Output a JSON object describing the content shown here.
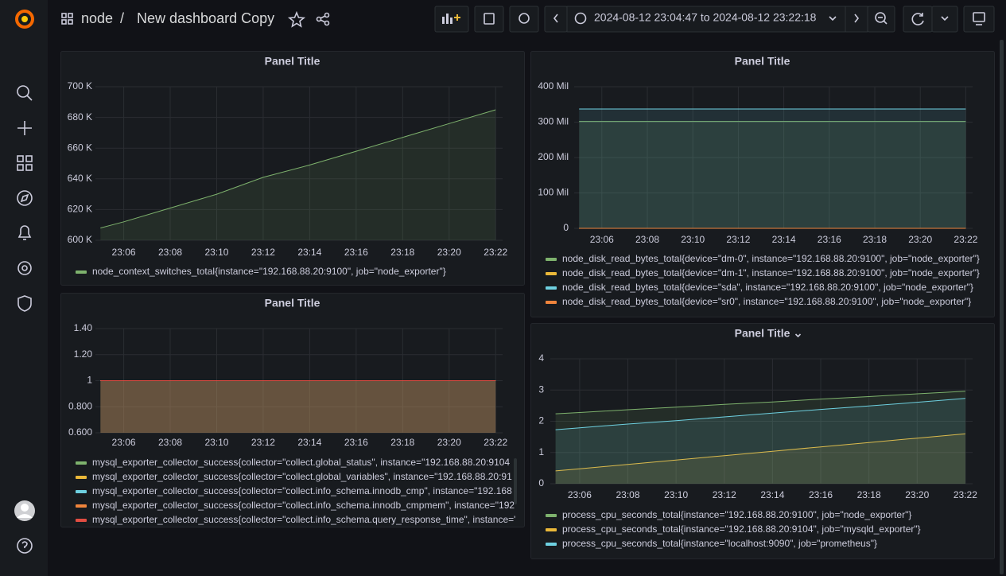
{
  "header": {
    "folder": "node",
    "separator": "/",
    "title": "New dashboard Copy",
    "time_range": "2024-08-12 23:04:47 to 2024-08-12 23:22:18"
  },
  "chart_data": [
    {
      "type": "line",
      "title": "Panel Title",
      "grid": true,
      "x": [
        "23:05",
        "23:06",
        "23:08",
        "23:10",
        "23:12",
        "23:14",
        "23:16",
        "23:18",
        "23:20",
        "23:22"
      ],
      "xlim": [
        "23:04:47",
        "23:22:18"
      ],
      "xticks": [
        "23:06",
        "23:08",
        "23:10",
        "23:12",
        "23:14",
        "23:16",
        "23:18",
        "23:20",
        "23:22"
      ],
      "ylim": [
        600000,
        700000
      ],
      "yticks": [
        {
          "value": 600000,
          "label": "600 K"
        },
        {
          "value": 620000,
          "label": "620 K"
        },
        {
          "value": 640000,
          "label": "640 K"
        },
        {
          "value": 660000,
          "label": "660 K"
        },
        {
          "value": 680000,
          "label": "680 K"
        },
        {
          "value": 700000,
          "label": "700 K"
        }
      ],
      "series": [
        {
          "name": "node_context_switches_total{instance=\"192.168.88.20:9100\", job=\"node_exporter\"}",
          "color": "#7eb26d",
          "values": [
            608000,
            612000,
            621000,
            630000,
            641000,
            649000,
            658000,
            667000,
            676000,
            685000
          ]
        }
      ]
    },
    {
      "type": "line",
      "title": "Panel Title",
      "grid": true,
      "x": [
        "23:05",
        "23:06",
        "23:08",
        "23:10",
        "23:12",
        "23:14",
        "23:16",
        "23:18",
        "23:20",
        "23:22"
      ],
      "xlim": [
        "23:04:47",
        "23:22:18"
      ],
      "xticks": [
        "23:06",
        "23:08",
        "23:10",
        "23:12",
        "23:14",
        "23:16",
        "23:18",
        "23:20",
        "23:22"
      ],
      "ylim": [
        0,
        400000000
      ],
      "yticks": [
        0,
        {
          "value": 100000000,
          "label": "100 Mil"
        },
        {
          "value": 200000000,
          "label": "200 Mil"
        },
        {
          "value": 300000000,
          "label": "300 Mil"
        },
        {
          "value": 400000000,
          "label": "400 Mil"
        }
      ],
      "series": [
        {
          "name": "node_disk_read_bytes_total{device=\"dm-0\", instance=\"192.168.88.20:9100\", job=\"node_exporter\"}",
          "color": "#7eb26d",
          "values": [
            302000000,
            302000000,
            302000000,
            302000000,
            302000000,
            302000000,
            302000000,
            302000000,
            302000000,
            302000000
          ]
        },
        {
          "name": "node_disk_read_bytes_total{device=\"dm-1\", instance=\"192.168.88.20:9100\", job=\"node_exporter\"}",
          "color": "#eab839",
          "values": [
            0,
            0,
            0,
            0,
            0,
            0,
            0,
            0,
            0,
            0
          ]
        },
        {
          "name": "node_disk_read_bytes_total{device=\"sda\", instance=\"192.168.88.20:9100\", job=\"node_exporter\"}",
          "color": "#6ed0e0",
          "values": [
            337000000,
            337000000,
            337000000,
            337000000,
            337000000,
            337000000,
            337000000,
            337000000,
            337000000,
            337000000
          ]
        },
        {
          "name": "node_disk_read_bytes_total{device=\"sr0\", instance=\"192.168.88.20:9100\", job=\"node_exporter\"}",
          "color": "#ef843c",
          "values": [
            0,
            0,
            0,
            0,
            0,
            0,
            0,
            0,
            0,
            0
          ]
        }
      ]
    },
    {
      "type": "line",
      "title": "Panel Title",
      "grid": true,
      "x": [
        "23:05",
        "23:06",
        "23:08",
        "23:10",
        "23:12",
        "23:14",
        "23:16",
        "23:18",
        "23:20",
        "23:22"
      ],
      "xlim": [
        "23:04:47",
        "23:22:18"
      ],
      "xticks": [
        "23:06",
        "23:08",
        "23:10",
        "23:12",
        "23:14",
        "23:16",
        "23:18",
        "23:20",
        "23:22"
      ],
      "ylim": [
        0.6,
        1.4
      ],
      "yticks": [
        {
          "value": 0.6,
          "label": "0.600"
        },
        {
          "value": 0.8,
          "label": "0.800"
        },
        1,
        {
          "value": 1.2,
          "label": "1.20"
        },
        {
          "value": 1.4,
          "label": "1.40"
        }
      ],
      "series": [
        {
          "name": "mysql_exporter_collector_success{collector=\"collect.global_status\", instance=\"192.168.88.20:9104",
          "color": "#7eb26d",
          "values": [
            1,
            1,
            1,
            1,
            1,
            1,
            1,
            1,
            1,
            1
          ]
        },
        {
          "name": "mysql_exporter_collector_success{collector=\"collect.global_variables\", instance=\"192.168.88.20:91",
          "color": "#eab839",
          "values": [
            1,
            1,
            1,
            1,
            1,
            1,
            1,
            1,
            1,
            1
          ]
        },
        {
          "name": "mysql_exporter_collector_success{collector=\"collect.info_schema.innodb_cmp\", instance=\"192.168",
          "color": "#6ed0e0",
          "values": [
            1,
            1,
            1,
            1,
            1,
            1,
            1,
            1,
            1,
            1
          ]
        },
        {
          "name": "mysql_exporter_collector_success{collector=\"collect.info_schema.innodb_cmpmem\", instance=\"192.",
          "color": "#ef843c",
          "values": [
            1,
            1,
            1,
            1,
            1,
            1,
            1,
            1,
            1,
            1
          ]
        },
        {
          "name": "mysql_exporter_collector_success{collector=\"collect.info_schema.query_response_time\", instance=\"",
          "color": "#e24d42",
          "values": [
            1,
            1,
            1,
            1,
            1,
            1,
            1,
            1,
            1,
            1
          ]
        }
      ]
    },
    {
      "type": "line",
      "title": "Panel Title",
      "grid": true,
      "x": [
        "23:05",
        "23:06",
        "23:08",
        "23:10",
        "23:12",
        "23:14",
        "23:16",
        "23:18",
        "23:20",
        "23:22"
      ],
      "xlim": [
        "23:04:47",
        "23:22:18"
      ],
      "xticks": [
        "23:06",
        "23:08",
        "23:10",
        "23:12",
        "23:14",
        "23:16",
        "23:18",
        "23:20",
        "23:22"
      ],
      "ylim": [
        0,
        4
      ],
      "yticks": [
        0,
        1,
        2,
        3,
        4
      ],
      "series": [
        {
          "name": "process_cpu_seconds_total{instance=\"192.168.88.20:9100\", job=\"node_exporter\"}",
          "color": "#7eb26d",
          "values": [
            2.24,
            2.28,
            2.37,
            2.45,
            2.54,
            2.62,
            2.71,
            2.79,
            2.88,
            2.96
          ]
        },
        {
          "name": "process_cpu_seconds_total{instance=\"192.168.88.20:9104\", job=\"mysqld_exporter\"}",
          "color": "#eab839",
          "values": [
            0.41,
            0.48,
            0.62,
            0.76,
            0.9,
            1.04,
            1.18,
            1.32,
            1.46,
            1.6
          ]
        },
        {
          "name": "process_cpu_seconds_total{instance=\"localhost:9090\", job=\"prometheus\"}",
          "color": "#6ed0e0",
          "values": [
            1.73,
            1.79,
            1.91,
            2.02,
            2.14,
            2.26,
            2.38,
            2.49,
            2.61,
            2.73
          ]
        }
      ]
    }
  ]
}
